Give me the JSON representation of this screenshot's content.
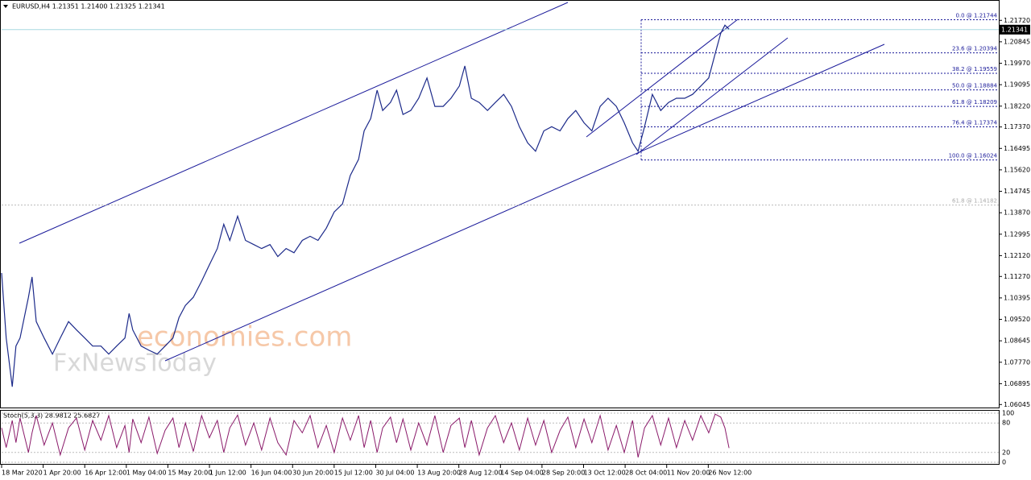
{
  "chart_data": {
    "type": "line",
    "title": "EURUSD,H4  1.21351 1.21400 1.21325 1.21341",
    "x": [
      0,
      10,
      23,
      31,
      40,
      58,
      66,
      75,
      92,
      110,
      127,
      145,
      162,
      180,
      197,
      215,
      232,
      249,
      267,
      276,
      284,
      302,
      319,
      337,
      354,
      371,
      384,
      398,
      415,
      433,
      450,
      467,
      481,
      494,
      511,
      528,
      546,
      563,
      581,
      598,
      616,
      633,
      651,
      668,
      685,
      703,
      720,
      738,
      755,
      773,
      785,
      799,
      813,
      825,
      842,
      855,
      869,
      886,
      903,
      921,
      938,
      956,
      973,
      991,
      1003,
      1017,
      1034,
      1052,
      1069,
      1087,
      1104,
      1121,
      1139,
      1156,
      1174,
      1191,
      1209,
      1226,
      1243,
      1261,
      1278,
      1296,
      1313,
      1331,
      1348,
      1366,
      1378,
      1392,
      1409,
      1427,
      1444,
      1461,
      1479,
      1496,
      1514,
      1531,
      1545,
      1557,
      1566,
      1575
    ],
    "series": [
      {
        "name": "EURUSD",
        "color": "#1c2a8a",
        "values": [
          1.1141,
          1.0876,
          1.0677,
          1.0843,
          1.0876,
          1.1042,
          1.1125,
          1.0943,
          1.0876,
          1.081,
          1.0876,
          1.0943,
          1.0909,
          1.0876,
          1.0843,
          1.0843,
          1.081,
          1.0843,
          1.0876,
          1.0976,
          1.0909,
          1.0843,
          1.0826,
          1.081,
          1.0843,
          1.0876,
          1.0959,
          1.1009,
          1.1042,
          1.1108,
          1.1175,
          1.1241,
          1.134,
          1.1274,
          1.1373,
          1.1274,
          1.1257,
          1.1241,
          1.1257,
          1.1208,
          1.1241,
          1.1224,
          1.1274,
          1.1291,
          1.1274,
          1.1324,
          1.139,
          1.1423,
          1.1539,
          1.1605,
          1.1721,
          1.1771,
          1.1887,
          1.1804,
          1.1837,
          1.1887,
          1.1788,
          1.1804,
          1.1854,
          1.1937,
          1.1821,
          1.1821,
          1.1854,
          1.1904,
          1.1986,
          1.1854,
          1.1837,
          1.1804,
          1.1837,
          1.187,
          1.1821,
          1.1738,
          1.1672,
          1.1638,
          1.1721,
          1.1738,
          1.1721,
          1.1771,
          1.1804,
          1.1754,
          1.1721,
          1.1821,
          1.1854,
          1.1821,
          1.1754,
          1.1672,
          1.1638,
          1.1738,
          1.187,
          1.1804,
          1.1837,
          1.1854,
          1.1854,
          1.187,
          1.1904,
          1.1937,
          1.2036,
          1.2119,
          1.2152,
          1.2136
        ]
      }
    ],
    "xlim": [
      0,
      2159
    ],
    "xticks": [
      {
        "value": 0,
        "label": "18 Mar 2020"
      },
      {
        "value": 90,
        "label": "1 Apr 20:00"
      },
      {
        "value": 180,
        "label": "16 Apr 12:00"
      },
      {
        "value": 270,
        "label": "1 May 04:00"
      },
      {
        "value": 360,
        "label": "15 May 20:00"
      },
      {
        "value": 450,
        "label": "1 Jun 12:00"
      },
      {
        "value": 540,
        "label": "16 Jun 04:00"
      },
      {
        "value": 630,
        "label": "30 Jun 20:00"
      },
      {
        "value": 720,
        "label": "15 Jul 12:00"
      },
      {
        "value": 810,
        "label": "30 Jul 04:00"
      },
      {
        "value": 900,
        "label": "13 Aug 20:00"
      },
      {
        "value": 990,
        "label": "28 Aug 12:00"
      },
      {
        "value": 1080,
        "label": "14 Sep 04:00"
      },
      {
        "value": 1170,
        "label": "28 Sep 20:00"
      },
      {
        "value": 1260,
        "label": "13 Oct 12:00"
      },
      {
        "value": 1350,
        "label": "28 Oct 04:00"
      },
      {
        "value": 1440,
        "label": "11 Nov 20:00"
      },
      {
        "value": 1530,
        "label": "26 Nov 12:00"
      }
    ],
    "ylim": [
      1.0589,
      1.2255
    ],
    "yticks": [
      {
        "value": 1.2172,
        "label": "1.21720"
      },
      {
        "value": 1.20845,
        "label": "1.20845"
      },
      {
        "value": 1.1997,
        "label": "1.19970"
      },
      {
        "value": 1.19095,
        "label": "1.19095"
      },
      {
        "value": 1.1822,
        "label": "1.18220"
      },
      {
        "value": 1.1737,
        "label": "1.17370"
      },
      {
        "value": 1.16495,
        "label": "1.16495"
      },
      {
        "value": 1.1562,
        "label": "1.15620"
      },
      {
        "value": 1.14745,
        "label": "1.14745"
      },
      {
        "value": 1.1387,
        "label": "1.13870"
      },
      {
        "value": 1.12995,
        "label": "1.12995"
      },
      {
        "value": 1.1212,
        "label": "1.12120"
      },
      {
        "value": 1.1127,
        "label": "1.11270"
      },
      {
        "value": 1.10395,
        "label": "1.10395"
      },
      {
        "value": 1.0952,
        "label": "1.09520"
      },
      {
        "value": 1.08645,
        "label": "1.08645"
      },
      {
        "value": 1.0777,
        "label": "1.07770"
      },
      {
        "value": 1.06895,
        "label": "1.06895"
      },
      {
        "value": 1.06045,
        "label": "1.06045"
      }
    ],
    "current_price": {
      "value": 1.21341,
      "label": "1.21341"
    },
    "fib_levels": [
      {
        "label": "0.0 @ 1.21744",
        "value": 1.21744
      },
      {
        "label": "23.6 @ 1.20394",
        "value": 1.20394
      },
      {
        "label": "38.2 @ 1.19559",
        "value": 1.19559
      },
      {
        "label": "50.0 @ 1.18884",
        "value": 1.18884
      },
      {
        "label": "61.8 @ 1.18209",
        "value": 1.18209
      },
      {
        "label": "76.4 @ 1.17374",
        "value": 1.17374
      },
      {
        "label": "100.0 @ 1.16024",
        "value": 1.16024
      }
    ],
    "fib_extra": {
      "label": "61.8 @ 1.14182",
      "value": 1.14182
    },
    "watermarks": [
      "economies.com",
      "FxNewsToday"
    ],
    "stochastic": {
      "title": "Stoch(5,3,3) 28.9812 25.6827",
      "color": "#8a1a6a",
      "ylim": [
        0,
        100
      ],
      "yticks": [
        100,
        80,
        20,
        0
      ],
      "values": [
        70,
        30,
        85,
        40,
        90,
        20,
        60,
        95,
        35,
        80,
        15,
        70,
        90,
        25,
        85,
        45,
        95,
        30,
        75,
        20,
        88,
        40,
        92,
        18,
        65,
        90,
        30,
        80,
        22,
        95,
        50,
        85,
        20,
        70,
        96,
        35,
        80,
        25,
        90,
        40,
        15,
        85,
        60,
        95,
        30,
        75,
        20,
        90,
        45,
        95,
        30,
        85,
        20,
        70,
        92,
        40,
        88,
        25,
        80,
        35,
        95,
        20,
        75,
        90,
        30,
        85,
        15,
        70,
        95,
        40,
        80,
        25,
        90,
        35,
        85,
        20,
        65,
        92,
        30,
        88,
        40,
        95,
        25,
        75,
        20,
        85,
        10,
        70,
        95,
        35,
        90,
        30,
        85,
        45,
        95,
        60,
        98,
        92,
        70,
        29
      ]
    }
  }
}
